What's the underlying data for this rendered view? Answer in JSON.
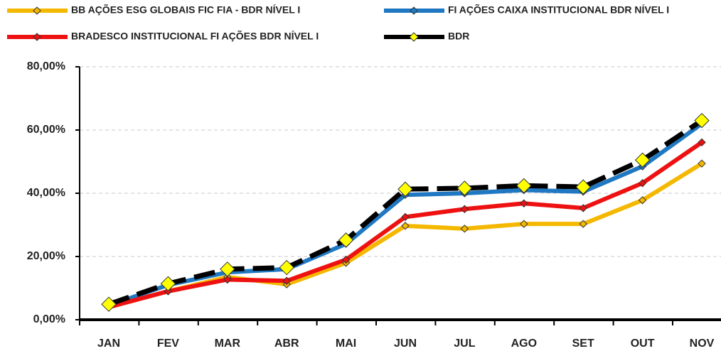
{
  "chart_data": {
    "type": "line",
    "categories": [
      "JAN",
      "FEV",
      "MAR",
      "ABR",
      "MAI",
      "JUN",
      "JUL",
      "AGO",
      "SET",
      "OUT",
      "NOV"
    ],
    "series": [
      {
        "name": "BB AÇÕES ESG GLOBAIS FIC FIA - BDR NÍVEL I",
        "color": "#f5b800",
        "values": [
          4,
          9,
          13.5,
          11.2,
          18,
          29.7,
          28.8,
          30.3,
          30.3,
          37.8,
          49.4
        ]
      },
      {
        "name": "FI AÇÕES CAIXA INSTITUCIONAL BDR NÍVEL I",
        "color": "#1f78c1",
        "values": [
          4.5,
          11,
          15,
          16,
          24,
          39.5,
          40,
          41,
          40.5,
          48.5,
          62
        ]
      },
      {
        "name": "BRADESCO INSTITUCIONAL FI AÇÕES BDR NÍVEL I",
        "color": "#ee1111",
        "values": [
          4,
          9,
          12.7,
          12.3,
          19,
          32.5,
          35,
          36.8,
          35.3,
          43.2,
          56.1
        ]
      },
      {
        "name": "BDR",
        "color": "#000000",
        "values": [
          4.9,
          11.4,
          16,
          16.5,
          25.2,
          41.3,
          41.6,
          42.4,
          42,
          50.5,
          63
        ]
      }
    ],
    "ylim": [
      0,
      80
    ],
    "yticks": [
      {
        "value": 0,
        "label": "0,00%"
      },
      {
        "value": 20,
        "label": "20,00%"
      },
      {
        "value": 40,
        "label": "40,00%"
      },
      {
        "value": 60,
        "label": "60,00%"
      },
      {
        "value": 80,
        "label": "80,00%"
      }
    ],
    "grid": true
  }
}
